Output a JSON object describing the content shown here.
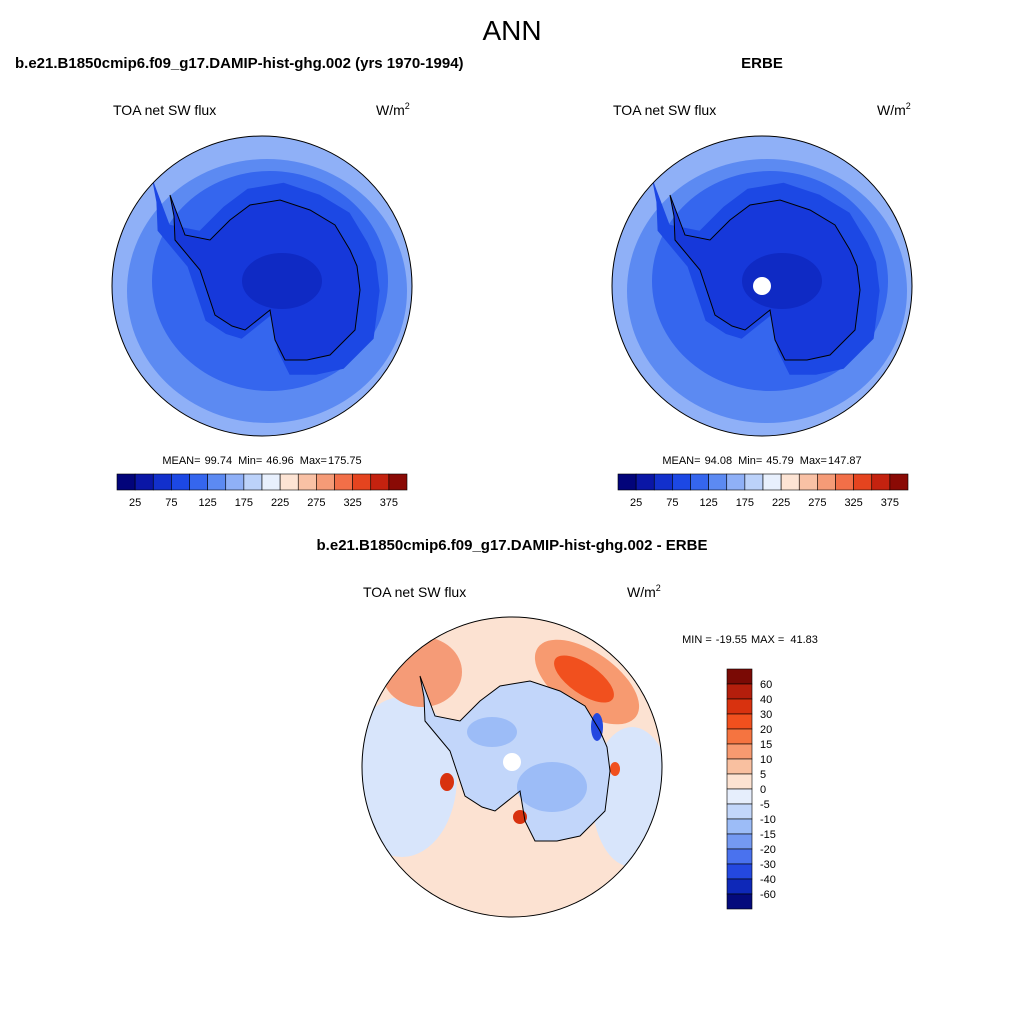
{
  "title": "ANN",
  "panels": [
    {
      "title": "b.e21.B1850cmip6.f09_g17.DAMIP-hist-ghg.002 (yrs 1970-1994)",
      "variable": "TOA net SW flux",
      "units": {
        "base": "W/m",
        "exponent": "2"
      },
      "stats": {
        "mean_label": "MEAN=",
        "mean": 99.74,
        "min_label": "Min=",
        "min": 46.96,
        "max_label": "Max=",
        "max": 175.75
      },
      "colorbar": {
        "ticks": [
          25,
          75,
          125,
          175,
          225,
          275,
          325,
          375
        ],
        "colors": [
          "#02047a",
          "#0a16a6",
          "#1230cc",
          "#1c48e4",
          "#3566ee",
          "#5c8af2",
          "#8fb0f7",
          "#bcd2fa",
          "#e8f0fd",
          "#fde4d4",
          "#f9c1a5",
          "#f59b77",
          "#f26f48",
          "#e5441f",
          "#c4220f",
          "#8a0a05"
        ]
      }
    },
    {
      "title": "ERBE",
      "variable": "TOA net SW flux",
      "units": {
        "base": "W/m",
        "exponent": "2"
      },
      "stats": {
        "mean_label": "MEAN=",
        "mean": 94.08,
        "min_label": "Min=",
        "min": 45.79,
        "max_label": "Max=",
        "max": 147.87
      },
      "colorbar": {
        "ticks": [
          25,
          75,
          125,
          175,
          225,
          275,
          325,
          375
        ],
        "colors": [
          "#02047a",
          "#0a16a6",
          "#1230cc",
          "#1c48e4",
          "#3566ee",
          "#5c8af2",
          "#8fb0f7",
          "#bcd2fa",
          "#e8f0fd",
          "#fde4d4",
          "#f9c1a5",
          "#f59b77",
          "#f26f48",
          "#e5441f",
          "#c4220f",
          "#8a0a05"
        ]
      }
    }
  ],
  "difference": {
    "title": "b.e21.B1850cmip6.f09_g17.DAMIP-hist-ghg.002 - ERBE",
    "variable": "TOA net SW flux",
    "units": {
      "base": "W/m",
      "exponent": "2"
    },
    "stats": {
      "min_label": "MIN =",
      "min": -19.55,
      "max_label": "MAX =",
      "max": 41.83
    },
    "colorbar": {
      "ticks": [
        60,
        40,
        30,
        20,
        15,
        10,
        5,
        0,
        -5,
        -10,
        -15,
        -20,
        -30,
        -40,
        -60
      ],
      "colors": [
        "#7a0a05",
        "#b41e0c",
        "#d8320f",
        "#f1501e",
        "#f57440",
        "#f79a70",
        "#f9c0a0",
        "#fde3d2",
        "#e6eefc",
        "#c2d6fa",
        "#9cbcf7",
        "#7499f2",
        "#4a72ee",
        "#2448e0",
        "#0e28b8",
        "#040a7c"
      ]
    }
  }
}
